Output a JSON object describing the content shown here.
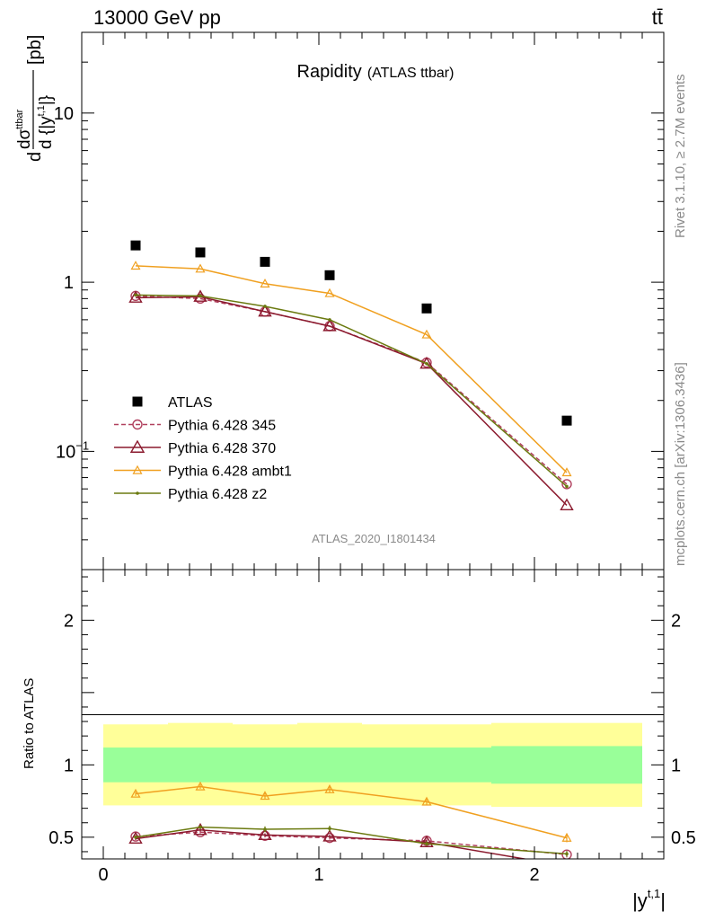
{
  "header": {
    "left": "13000 GeV pp",
    "right": "tt̄"
  },
  "title": "Rapidity",
  "subtitle": "(ATLAS ttbar)",
  "ylabel_main": {
    "d": "d",
    "num": "dσ",
    "sup": "ttbar",
    "den": "d {|y",
    "den_sup": "t,1",
    "den_tail": "|}",
    "unit": "[pb]"
  },
  "ylabel_ratio": "Ratio to ATLAS",
  "xlabel": {
    "text": "|y",
    "sup": "t,1",
    "tail": "|"
  },
  "watermark": "ATLAS_2020_I1801434",
  "side_text_top": "Rivet 3.1.10, ≥ 2.7M events",
  "side_text_bottom": "mcplots.cern.ch [arXiv:1306.3436]",
  "main_yticks": [
    {
      "value": 0.1,
      "base": "10",
      "exp": "−1"
    },
    {
      "value": 1,
      "base": "1",
      "exp": ""
    },
    {
      "value": 10,
      "base": "10",
      "exp": ""
    }
  ],
  "ratio_yticks": [
    {
      "value": 0.5,
      "label": "0.5"
    },
    {
      "value": 1,
      "label": "1"
    },
    {
      "value": 2,
      "label": "2"
    }
  ],
  "xticks": [
    {
      "value": 0,
      "label": "0"
    },
    {
      "value": 1,
      "label": "1"
    },
    {
      "value": 2,
      "label": "2"
    }
  ],
  "colors": {
    "atlas": "#000000",
    "p345": "#b0405e",
    "p370": "#8b1a2e",
    "ambt1": "#f0a020",
    "z2": "#6b7a10",
    "band_outer": "#ffff99",
    "band_inner": "#99ff99"
  },
  "legend": [
    {
      "key": "atlas",
      "label": "ATLAS"
    },
    {
      "key": "p345",
      "label": "Pythia 6.428 345"
    },
    {
      "key": "p370",
      "label": "Pythia 6.428 370"
    },
    {
      "key": "ambt1",
      "label": "Pythia 6.428 ambt1"
    },
    {
      "key": "z2",
      "label": "Pythia 6.428 z2"
    }
  ],
  "chart_data": {
    "type": "scatter",
    "xlim": [
      -0.1,
      2.6
    ],
    "ylim_main": [
      0.02,
      30
    ],
    "ylog_main": true,
    "ylim_ratio": [
      0.35,
      2.35
    ],
    "x_bins": [
      [
        0,
        0.3
      ],
      [
        0.3,
        0.6
      ],
      [
        0.6,
        0.9
      ],
      [
        0.9,
        1.2
      ],
      [
        1.2,
        1.8
      ],
      [
        1.8,
        2.5
      ]
    ],
    "x": [
      0.15,
      0.45,
      0.75,
      1.05,
      1.5,
      2.15
    ],
    "data": {
      "name": "ATLAS",
      "values": [
        1.65,
        1.5,
        1.32,
        1.1,
        0.7,
        0.152
      ]
    },
    "series": [
      {
        "key": "p345",
        "name": "Pythia 6.428 345",
        "values": [
          0.83,
          0.8,
          0.67,
          0.55,
          0.335,
          0.064
        ],
        "ratio": [
          0.505,
          0.535,
          0.51,
          0.495,
          0.475,
          0.38
        ],
        "ratio_err": [
          0.01,
          0.01,
          0.012,
          0.012,
          0.015,
          0.02
        ]
      },
      {
        "key": "p370",
        "name": "Pythia 6.428 370",
        "values": [
          0.81,
          0.82,
          0.67,
          0.55,
          0.33,
          0.048
        ],
        "ratio": [
          0.49,
          0.55,
          0.515,
          0.505,
          0.465,
          0.3
        ],
        "ratio_err": [
          0.01,
          0.01,
          0.012,
          0.012,
          0.015,
          0.02
        ]
      },
      {
        "key": "ambt1",
        "name": "Pythia 6.428 ambt1",
        "values": [
          1.25,
          1.2,
          0.98,
          0.86,
          0.49,
          0.075
        ],
        "ratio": [
          0.8,
          0.85,
          0.785,
          0.83,
          0.745,
          0.495
        ],
        "ratio_err": [
          0.015,
          0.015,
          0.02,
          0.02,
          0.02,
          0.03
        ]
      },
      {
        "key": "z2",
        "name": "Pythia 6.428 z2",
        "values": [
          0.84,
          0.83,
          0.72,
          0.6,
          0.33,
          0.062
        ],
        "ratio": [
          0.5,
          0.57,
          0.555,
          0.56,
          0.455,
          0.385
        ],
        "ratio_err": [
          0.01,
          0.012,
          0.02,
          0.02,
          0.015,
          0.02
        ]
      }
    ],
    "ratio_band_inner": [
      [
        0.88,
        1.12
      ],
      [
        0.88,
        1.12
      ],
      [
        0.88,
        1.12
      ],
      [
        0.88,
        1.12
      ],
      [
        0.88,
        1.12
      ],
      [
        0.87,
        1.13
      ]
    ],
    "ratio_band_outer": [
      [
        0.72,
        1.28
      ],
      [
        0.72,
        1.29
      ],
      [
        0.72,
        1.28
      ],
      [
        0.72,
        1.29
      ],
      [
        0.72,
        1.28
      ],
      [
        0.71,
        1.29
      ]
    ]
  }
}
